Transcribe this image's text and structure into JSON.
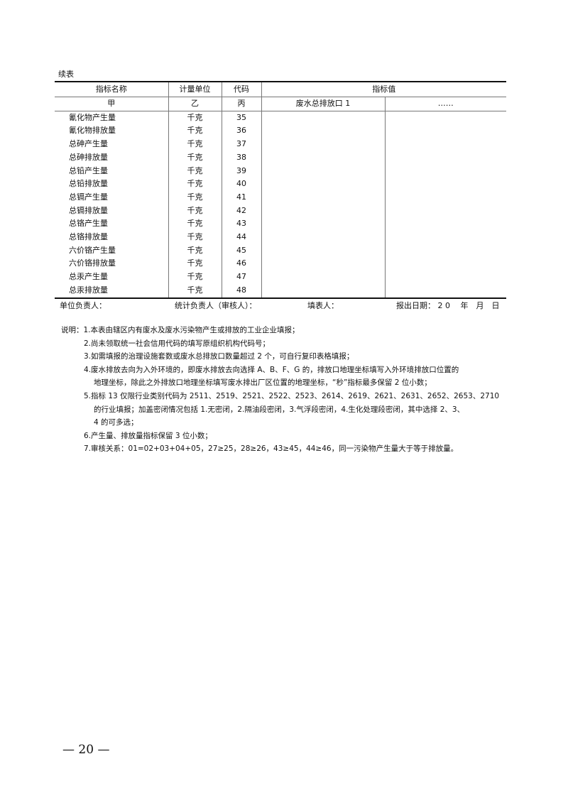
{
  "caption": "续表",
  "table": {
    "headers": [
      "指标名称",
      "计量单位",
      "代码",
      "指标值"
    ],
    "subheaders": [
      "甲",
      "乙",
      "丙",
      "废水总排放口 1",
      "……"
    ],
    "rows": [
      {
        "name": "氰化物产生量",
        "unit": "千克",
        "code": "35"
      },
      {
        "name": "氰化物排放量",
        "unit": "千克",
        "code": "36"
      },
      {
        "name": "总砷产生量",
        "unit": "千克",
        "code": "37"
      },
      {
        "name": "总砷排放量",
        "unit": "千克",
        "code": "38"
      },
      {
        "name": "总铅产生量",
        "unit": "千克",
        "code": "39"
      },
      {
        "name": "总铅排放量",
        "unit": "千克",
        "code": "40"
      },
      {
        "name": "总镉产生量",
        "unit": "千克",
        "code": "41"
      },
      {
        "name": "总镉排放量",
        "unit": "千克",
        "code": "42"
      },
      {
        "name": "总铬产生量",
        "unit": "千克",
        "code": "43"
      },
      {
        "name": "总铬排放量",
        "unit": "千克",
        "code": "44"
      },
      {
        "name": "六价铬产生量",
        "unit": "千克",
        "code": "45"
      },
      {
        "name": "六价铬排放量",
        "unit": "千克",
        "code": "46"
      },
      {
        "name": "总汞产生量",
        "unit": "千克",
        "code": "47"
      },
      {
        "name": "总汞排放量",
        "unit": "千克",
        "code": "48"
      }
    ]
  },
  "footer": {
    "unit_head": "单位负责人：",
    "stat_head": "统计负责人（审核人）：",
    "filler": "填表人：",
    "date": "报出日期： 2 0　 年　月　日"
  },
  "notes": [
    "说明：1.本表由辖区内有废水及废水污染物产生或排放的工业企业填报；",
    "2.尚未领取统一社会信用代码的填写原组织机构代码号；",
    "3.如需填报的治理设施套数或废水总排放口数量超过 2 个，可自行复印表格填报；",
    "4.废水排放去向为入外环境的，即废水排放去向选择 A、B、F、G 的，排放口地理坐标填写入外环境排放口位置的",
    "地理坐标，除此之外排放口地理坐标填写废水排出厂区位置的地理坐标，“秒”指标最多保留 2 位小数；",
    "5.指标 13 仅限行业类别代码为 2511、2519、2521、2522、2523、2614、2619、2621、2631、2652、2653、2710",
    "的行业填报；加盖密闭情况包括 1.无密闭，2.隔油段密闭，3.气浮段密闭，4.生化处理段密闭，其中选择 2、3、",
    "4 的可多选；",
    "6.产生量、排放量指标保留 3 位小数；",
    "7.审核关系：01=02+03+04+05，27≥25，28≥26，43≥45，44≥46，同一污染物产生量大于等于排放量。"
  ],
  "page_number": "— 20 —"
}
